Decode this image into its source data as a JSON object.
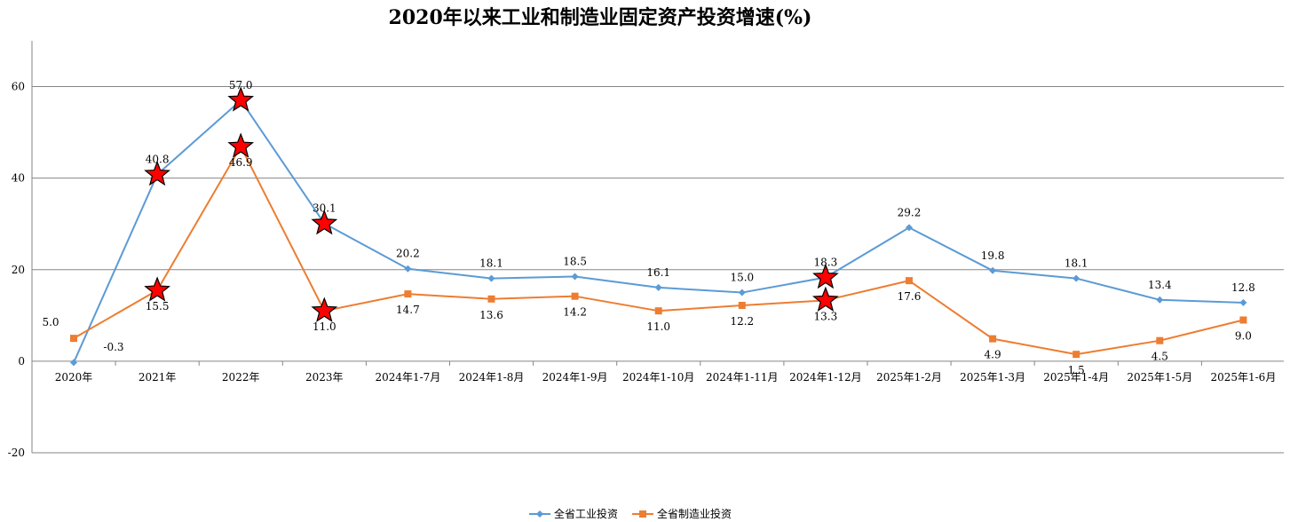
{
  "chart_data": {
    "type": "line",
    "title": "2020年以来工业和制造业固定资产投资增速(%)",
    "categories": [
      "2020年",
      "2021年",
      "2022年",
      "2023年",
      "2024年1-7月",
      "2024年1-8月",
      "2024年1-9月",
      "2024年1-10月",
      "2024年1-11月",
      "2024年1-12月",
      "2025年1-2月",
      "2025年1-3月",
      "2025年1-4月",
      "2025年1-5月",
      "2025年1-6月"
    ],
    "series": [
      {
        "name": "全省工业投资",
        "color": "#5B9BD5",
        "marker": "diamond",
        "values": [
          -0.3,
          40.8,
          57.0,
          30.1,
          20.2,
          18.1,
          18.5,
          16.1,
          15.0,
          18.3,
          29.2,
          19.8,
          18.1,
          13.4,
          12.8
        ],
        "labels": [
          "-0.3",
          "40.8",
          "57.0",
          "30.1",
          "20.2",
          "18.1",
          "18.5",
          "16.1",
          "15.0",
          "18.3",
          "29.2",
          "19.8",
          "18.1",
          "13.4",
          "12.8"
        ]
      },
      {
        "name": "全省制造业投资",
        "color": "#ED7D31",
        "marker": "square",
        "values": [
          5.0,
          15.5,
          46.9,
          11.0,
          14.7,
          13.6,
          14.2,
          11.0,
          12.2,
          13.3,
          17.6,
          4.9,
          1.5,
          4.5,
          9.0
        ],
        "labels": [
          "5.0",
          "15.5",
          "46.9",
          "11.0",
          "14.7",
          "13.6",
          "14.2",
          "11.0",
          "12.2",
          "13.3",
          "17.6",
          "4.9",
          "1.5",
          "4.5",
          "9.0"
        ]
      }
    ],
    "ylim": [
      -20,
      70
    ],
    "yticks": [
      -20,
      0,
      20,
      40,
      60
    ],
    "grid": true,
    "legend": "bottom-center",
    "highlight_markers": [
      {
        "series": 1,
        "index": 1
      },
      {
        "series": 1,
        "index": 2
      },
      {
        "series": 1,
        "index": 3
      },
      {
        "series": 1,
        "index": 9
      },
      {
        "series": 0,
        "index": 1
      },
      {
        "series": 0,
        "index": 2
      },
      {
        "series": 0,
        "index": 3
      },
      {
        "series": 0,
        "index": 9
      }
    ],
    "highlight_color": "#FF0000"
  }
}
